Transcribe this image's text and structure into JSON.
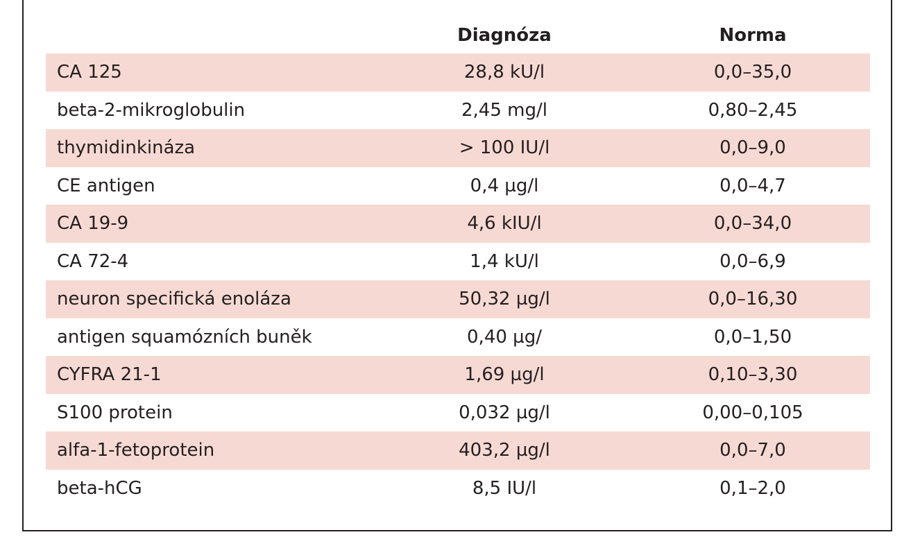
{
  "table": {
    "headers": [
      "",
      "Diagnóza",
      "Norma"
    ],
    "rows": [
      [
        "CA 125",
        "28,8 kU/l",
        "0,0–35,0"
      ],
      [
        "beta-2-mikroglobulin",
        "2,45 mg/l",
        "0,80–2,45"
      ],
      [
        "thymidinkináza",
        "> 100 IU/l",
        "0,0–9,0"
      ],
      [
        "CE antigen",
        "0,4 µg/l",
        "0,0–4,7"
      ],
      [
        "CA 19-9",
        "4,6 kIU/l",
        "0,0–34,0"
      ],
      [
        "CA 72-4",
        "1,4 kU/l",
        "0,0–6,9"
      ],
      [
        "neuron specifická enoláza",
        "50,32 µg/l",
        "0,0–16,30"
      ],
      [
        "antigen squamózních buněk",
        "0,40 µg/",
        "0,0–1,50"
      ],
      [
        "CYFRA 21-1",
        "1,69 µg/l",
        "0,10–3,30"
      ],
      [
        "S100 protein",
        "0,032 µg/l",
        "0,00–0,105"
      ],
      [
        "alfa-1-fetoprotein",
        "403,2 µg/l",
        "0,0–7,0"
      ],
      [
        "beta-hCG",
        "8,5 IU/l",
        "0,1–2,0"
      ]
    ],
    "shaded_row_color": "#f7d9d3",
    "text_color": "#231f20"
  }
}
